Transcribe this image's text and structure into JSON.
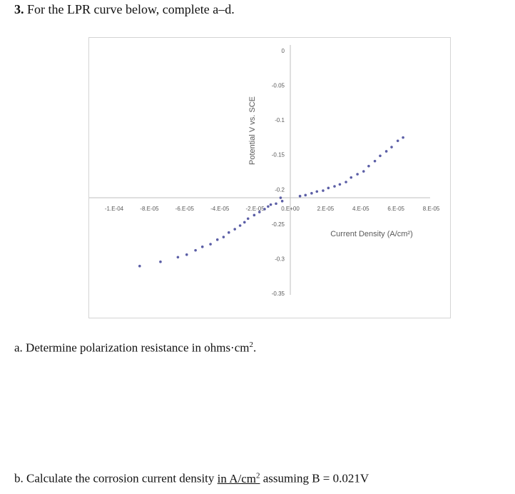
{
  "question": {
    "number": "3.",
    "text": "For the LPR curve below, complete a–d."
  },
  "part_a": {
    "text": "a. Determine polarization resistance in ohms·cm",
    "sup": "2",
    "end": "."
  },
  "part_b": {
    "pre": "b. Calculate the corrosion current density ",
    "underlined": "in A/cm",
    "sup": "2",
    "post": " assuming B = 0.021V"
  },
  "chart_data": {
    "type": "scatter",
    "xlabel": "Current Density (A/cm²)",
    "ylabel": "Potential V vs. SCE",
    "xlim": [
      -0.0001,
      8e-05
    ],
    "ylim": [
      -0.35,
      0
    ],
    "x_axis_crosses_y": -0.212,
    "x_ticks": [
      -0.0001,
      -8e-05,
      -6e-05,
      -4e-05,
      -2e-05,
      0,
      2e-05,
      4e-05,
      6e-05,
      8e-05
    ],
    "x_tick_labels": [
      "-1.E-04",
      "-8.E-05",
      "-6.E-05",
      "-4.E-05",
      "-2.E-05",
      "0.E+00",
      "2.E-05",
      "4.E-05",
      "6.E-05",
      "8.E-05"
    ],
    "y_ticks": [
      0,
      -0.05,
      -0.1,
      -0.15,
      -0.2,
      -0.25,
      -0.3,
      -0.35
    ],
    "y_tick_labels": [
      "0",
      "-0.05",
      "-0.1",
      "-0.15",
      "-0.2",
      "-0.25",
      "-0.3",
      "-0.35"
    ],
    "grid": false,
    "marker_color": "#5b5ea6",
    "points": [
      [
        -8.55e-05,
        -0.3106
      ],
      [
        -7.37e-05,
        -0.3044
      ],
      [
        -6.38e-05,
        -0.2978
      ],
      [
        -5.88e-05,
        -0.2941
      ],
      [
        -5.38e-05,
        -0.2879
      ],
      [
        -4.99e-05,
        -0.2828
      ],
      [
        -4.53e-05,
        -0.279
      ],
      [
        -4.14e-05,
        -0.2725
      ],
      [
        -3.79e-05,
        -0.2687
      ],
      [
        -3.49e-05,
        -0.2622
      ],
      [
        -3.15e-05,
        -0.2574
      ],
      [
        -2.85e-05,
        -0.2522
      ],
      [
        -2.6e-05,
        -0.2474
      ],
      [
        -2.4e-05,
        -0.2422
      ],
      [
        -2.05e-05,
        -0.2371
      ],
      [
        -1.75e-05,
        -0.2326
      ],
      [
        -1.46e-05,
        -0.2285
      ],
      [
        -1.26e-05,
        -0.2247
      ],
      [
        -1.11e-05,
        -0.222
      ],
      [
        -8.1e-06,
        -0.2206
      ],
      [
        -5.5e-06,
        -0.2121
      ],
      [
        -4.6e-06,
        -0.2169
      ],
      [
        5.5e-06,
        -0.2097
      ],
      [
        8.6e-06,
        -0.2083
      ],
      [
        1.21e-05,
        -0.2056
      ],
      [
        1.51e-05,
        -0.2031
      ],
      [
        1.86e-05,
        -0.2018
      ],
      [
        2.16e-05,
        -0.198
      ],
      [
        2.51e-05,
        -0.1956
      ],
      [
        2.81e-05,
        -0.1928
      ],
      [
        3.16e-05,
        -0.1894
      ],
      [
        3.45e-05,
        -0.1829
      ],
      [
        3.81e-05,
        -0.1781
      ],
      [
        4.16e-05,
        -0.174
      ],
      [
        4.45e-05,
        -0.1664
      ],
      [
        4.8e-05,
        -0.1592
      ],
      [
        5.1e-05,
        -0.1516
      ],
      [
        5.45e-05,
        -0.1451
      ],
      [
        5.75e-05,
        -0.139
      ],
      [
        6.1e-05,
        -0.13
      ],
      [
        6.4e-05,
        -0.1252
      ]
    ]
  }
}
